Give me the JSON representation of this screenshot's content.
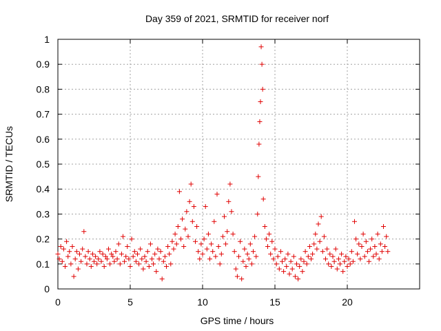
{
  "chart_data": {
    "type": "scatter",
    "title": "Day 359 of 2021, SRMTID for receiver norf",
    "xlabel": "GPS time / hours",
    "ylabel": "SRMTID / TECUs",
    "xlim": [
      0,
      25
    ],
    "ylim": [
      0,
      1
    ],
    "xticks": [
      0,
      5,
      10,
      15,
      20
    ],
    "yticks": [
      0,
      0.1,
      0.2,
      0.3,
      0.4,
      0.5,
      0.6,
      0.7,
      0.8,
      0.9,
      1
    ],
    "xtick_labels": [
      "0",
      "5",
      "10",
      "15",
      "20"
    ],
    "ytick_labels": [
      "0",
      "0.1",
      "0.2",
      "0.3",
      "0.4",
      "0.5",
      "0.6",
      "0.7",
      "0.8",
      "0.9",
      "1"
    ],
    "grid": true,
    "marker": "+",
    "marker_color": "#e00000",
    "series": [
      {
        "name": "SRMTID",
        "points": [
          [
            0.0,
            0.14
          ],
          [
            0.1,
            0.12
          ],
          [
            0.2,
            0.17
          ],
          [
            0.3,
            0.11
          ],
          [
            0.4,
            0.16
          ],
          [
            0.5,
            0.09
          ],
          [
            0.6,
            0.19
          ],
          [
            0.7,
            0.13
          ],
          [
            0.8,
            0.15
          ],
          [
            0.9,
            0.1
          ],
          [
            1.0,
            0.17
          ],
          [
            1.1,
            0.05
          ],
          [
            1.2,
            0.12
          ],
          [
            1.3,
            0.15
          ],
          [
            1.4,
            0.08
          ],
          [
            1.5,
            0.14
          ],
          [
            1.6,
            0.11
          ],
          [
            1.7,
            0.16
          ],
          [
            1.8,
            0.23
          ],
          [
            1.9,
            0.13
          ],
          [
            2.0,
            0.1
          ],
          [
            2.1,
            0.15
          ],
          [
            2.2,
            0.12
          ],
          [
            2.3,
            0.09
          ],
          [
            2.4,
            0.14
          ],
          [
            2.5,
            0.11
          ],
          [
            2.6,
            0.13
          ],
          [
            2.7,
            0.1
          ],
          [
            2.8,
            0.12
          ],
          [
            2.9,
            0.15
          ],
          [
            3.0,
            0.11
          ],
          [
            3.1,
            0.14
          ],
          [
            3.2,
            0.09
          ],
          [
            3.3,
            0.13
          ],
          [
            3.4,
            0.12
          ],
          [
            3.5,
            0.16
          ],
          [
            3.6,
            0.1
          ],
          [
            3.7,
            0.14
          ],
          [
            3.8,
            0.13
          ],
          [
            3.9,
            0.11
          ],
          [
            4.0,
            0.15
          ],
          [
            4.1,
            0.12
          ],
          [
            4.2,
            0.18
          ],
          [
            4.3,
            0.1
          ],
          [
            4.4,
            0.14
          ],
          [
            4.5,
            0.21
          ],
          [
            4.6,
            0.11
          ],
          [
            4.7,
            0.13
          ],
          [
            4.8,
            0.17
          ],
          [
            4.9,
            0.12
          ],
          [
            5.0,
            0.09
          ],
          [
            5.1,
            0.2
          ],
          [
            5.2,
            0.13
          ],
          [
            5.3,
            0.15
          ],
          [
            5.4,
            0.11
          ],
          [
            5.5,
            0.14
          ],
          [
            5.6,
            0.1
          ],
          [
            5.7,
            0.16
          ],
          [
            5.8,
            0.12
          ],
          [
            5.9,
            0.08
          ],
          [
            6.0,
            0.13
          ],
          [
            6.1,
            0.11
          ],
          [
            6.2,
            0.15
          ],
          [
            6.3,
            0.09
          ],
          [
            6.4,
            0.18
          ],
          [
            6.5,
            0.12
          ],
          [
            6.6,
            0.1
          ],
          [
            6.7,
            0.14
          ],
          [
            6.8,
            0.07
          ],
          [
            6.9,
            0.16
          ],
          [
            7.0,
            0.12
          ],
          [
            7.1,
            0.15
          ],
          [
            7.2,
            0.04
          ],
          [
            7.3,
            0.11
          ],
          [
            7.4,
            0.13
          ],
          [
            7.5,
            0.09
          ],
          [
            7.6,
            0.17
          ],
          [
            7.7,
            0.14
          ],
          [
            7.8,
            0.1
          ],
          [
            7.9,
            0.19
          ],
          [
            8.0,
            0.16
          ],
          [
            8.1,
            0.22
          ],
          [
            8.2,
            0.18
          ],
          [
            8.3,
            0.25
          ],
          [
            8.4,
            0.39
          ],
          [
            8.5,
            0.2
          ],
          [
            8.6,
            0.28
          ],
          [
            8.7,
            0.17
          ],
          [
            8.8,
            0.24
          ],
          [
            8.9,
            0.31
          ],
          [
            9.0,
            0.21
          ],
          [
            9.1,
            0.35
          ],
          [
            9.2,
            0.42
          ],
          [
            9.3,
            0.27
          ],
          [
            9.4,
            0.33
          ],
          [
            9.5,
            0.19
          ],
          [
            9.6,
            0.25
          ],
          [
            9.7,
            0.15
          ],
          [
            9.8,
            0.12
          ],
          [
            9.9,
            0.18
          ],
          [
            10.0,
            0.14
          ],
          [
            10.1,
            0.2
          ],
          [
            10.2,
            0.33
          ],
          [
            10.3,
            0.16
          ],
          [
            10.4,
            0.22
          ],
          [
            10.5,
            0.12
          ],
          [
            10.6,
            0.18
          ],
          [
            10.7,
            0.15
          ],
          [
            10.8,
            0.27
          ],
          [
            10.9,
            0.13
          ],
          [
            11.0,
            0.38
          ],
          [
            11.1,
            0.17
          ],
          [
            11.2,
            0.1
          ],
          [
            11.3,
            0.14
          ],
          [
            11.4,
            0.21
          ],
          [
            11.5,
            0.29
          ],
          [
            11.6,
            0.18
          ],
          [
            11.7,
            0.23
          ],
          [
            11.8,
            0.35
          ],
          [
            11.9,
            0.42
          ],
          [
            12.0,
            0.31
          ],
          [
            12.1,
            0.22
          ],
          [
            12.2,
            0.15
          ],
          [
            12.3,
            0.08
          ],
          [
            12.4,
            0.05
          ],
          [
            12.5,
            0.13
          ],
          [
            12.6,
            0.19
          ],
          [
            12.7,
            0.04
          ],
          [
            12.8,
            0.11
          ],
          [
            12.9,
            0.16
          ],
          [
            13.0,
            0.09
          ],
          [
            13.1,
            0.14
          ],
          [
            13.2,
            0.12
          ],
          [
            13.3,
            0.18
          ],
          [
            13.4,
            0.1
          ],
          [
            13.5,
            0.15
          ],
          [
            13.6,
            0.21
          ],
          [
            13.7,
            0.13
          ],
          [
            13.8,
            0.3
          ],
          [
            13.85,
            0.45
          ],
          [
            13.9,
            0.58
          ],
          [
            13.95,
            0.67
          ],
          [
            14.0,
            0.75
          ],
          [
            14.05,
            0.97
          ],
          [
            14.1,
            0.9
          ],
          [
            14.15,
            0.8
          ],
          [
            14.2,
            0.36
          ],
          [
            14.3,
            0.25
          ],
          [
            14.4,
            0.2
          ],
          [
            14.5,
            0.17
          ],
          [
            14.6,
            0.22
          ],
          [
            14.7,
            0.14
          ],
          [
            14.8,
            0.19
          ],
          [
            14.9,
            0.12
          ],
          [
            15.0,
            0.16
          ],
          [
            15.1,
            0.1
          ],
          [
            15.2,
            0.13
          ],
          [
            15.3,
            0.08
          ],
          [
            15.4,
            0.15
          ],
          [
            15.5,
            0.11
          ],
          [
            15.6,
            0.07
          ],
          [
            15.7,
            0.12
          ],
          [
            15.8,
            0.09
          ],
          [
            15.9,
            0.14
          ],
          [
            16.0,
            0.06
          ],
          [
            16.1,
            0.11
          ],
          [
            16.2,
            0.08
          ],
          [
            16.3,
            0.13
          ],
          [
            16.4,
            0.05
          ],
          [
            16.5,
            0.1
          ],
          [
            16.6,
            0.04
          ],
          [
            16.7,
            0.09
          ],
          [
            16.8,
            0.12
          ],
          [
            16.9,
            0.07
          ],
          [
            17.0,
            0.11
          ],
          [
            17.1,
            0.15
          ],
          [
            17.2,
            0.1
          ],
          [
            17.3,
            0.13
          ],
          [
            17.4,
            0.17
          ],
          [
            17.5,
            0.12
          ],
          [
            17.6,
            0.14
          ],
          [
            17.7,
            0.18
          ],
          [
            17.8,
            0.22
          ],
          [
            17.9,
            0.16
          ],
          [
            18.0,
            0.26
          ],
          [
            18.1,
            0.19
          ],
          [
            18.2,
            0.29
          ],
          [
            18.3,
            0.15
          ],
          [
            18.4,
            0.21
          ],
          [
            18.5,
            0.12
          ],
          [
            18.6,
            0.16
          ],
          [
            18.7,
            0.1
          ],
          [
            18.8,
            0.14
          ],
          [
            18.9,
            0.09
          ],
          [
            19.0,
            0.13
          ],
          [
            19.1,
            0.11
          ],
          [
            19.2,
            0.16
          ],
          [
            19.3,
            0.08
          ],
          [
            19.4,
            0.12
          ],
          [
            19.5,
            0.1
          ],
          [
            19.6,
            0.14
          ],
          [
            19.7,
            0.07
          ],
          [
            19.8,
            0.11
          ],
          [
            19.9,
            0.13
          ],
          [
            20.0,
            0.09
          ],
          [
            20.1,
            0.12
          ],
          [
            20.2,
            0.1
          ],
          [
            20.3,
            0.15
          ],
          [
            20.4,
            0.11
          ],
          [
            20.5,
            0.27
          ],
          [
            20.6,
            0.2
          ],
          [
            20.7,
            0.14
          ],
          [
            20.8,
            0.18
          ],
          [
            20.9,
            0.12
          ],
          [
            21.0,
            0.17
          ],
          [
            21.1,
            0.22
          ],
          [
            21.2,
            0.13
          ],
          [
            21.3,
            0.19
          ],
          [
            21.4,
            0.15
          ],
          [
            21.5,
            0.11
          ],
          [
            21.6,
            0.16
          ],
          [
            21.7,
            0.2
          ],
          [
            21.8,
            0.13
          ],
          [
            21.9,
            0.17
          ],
          [
            22.0,
            0.14
          ],
          [
            22.1,
            0.22
          ],
          [
            22.2,
            0.12
          ],
          [
            22.3,
            0.18
          ],
          [
            22.4,
            0.15
          ],
          [
            22.5,
            0.25
          ],
          [
            22.6,
            0.17
          ],
          [
            22.7,
            0.21
          ],
          [
            22.8,
            0.15
          ]
        ]
      }
    ]
  }
}
